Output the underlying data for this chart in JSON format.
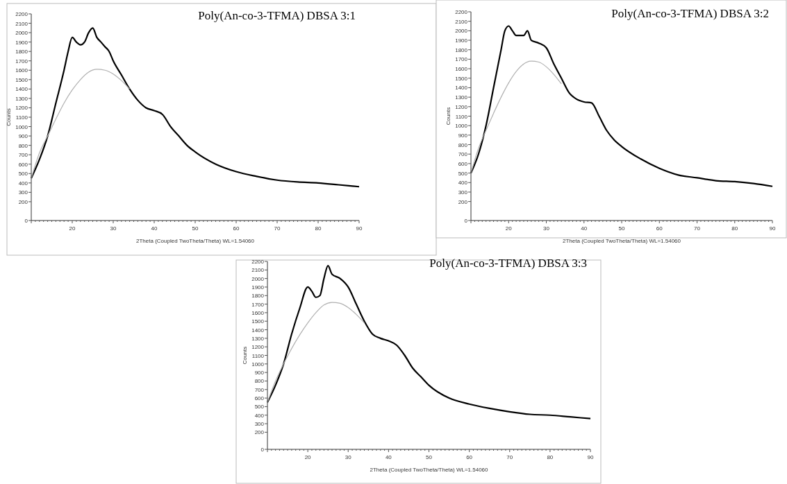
{
  "chart_data": [
    {
      "type": "line",
      "title": "Poly(An-co-3-TFMA) DBSA 3:1",
      "xlabel": "2Theta (Coupled TwoTheta/Theta) WL=1.54060",
      "ylabel": "Counts",
      "xlim": [
        10,
        90
      ],
      "ylim": [
        0,
        2200
      ],
      "xticks": [
        20,
        30,
        40,
        50,
        60,
        70,
        80,
        90
      ],
      "yticks": [
        0,
        200,
        300,
        400,
        500,
        600,
        700,
        800,
        900,
        1000,
        1100,
        1200,
        1300,
        1400,
        1500,
        1600,
        1700,
        1800,
        1900,
        2000,
        2100,
        2200
      ],
      "grid": false,
      "marker": "none",
      "series": [
        {
          "color": "#000000",
          "x": [
            10,
            12,
            14,
            16,
            18,
            19,
            20,
            21,
            22,
            23,
            24,
            25,
            26,
            27,
            28,
            29,
            30,
            32,
            34,
            36,
            38,
            40,
            42,
            44,
            46,
            48,
            50,
            55,
            60,
            65,
            70,
            75,
            80,
            85,
            90
          ],
          "values": [
            450,
            650,
            900,
            1250,
            1600,
            1800,
            1950,
            1900,
            1870,
            1900,
            2000,
            2050,
            1950,
            1900,
            1850,
            1800,
            1700,
            1550,
            1400,
            1280,
            1200,
            1170,
            1130,
            1000,
            900,
            800,
            730,
            600,
            520,
            470,
            430,
            410,
            400,
            380,
            360
          ]
        },
        {
          "color": "#b0b0b0",
          "x": [
            10,
            12,
            14,
            16,
            18,
            20,
            22,
            24,
            26,
            28,
            30,
            32,
            34
          ],
          "values": [
            450,
            720,
            900,
            1080,
            1250,
            1390,
            1500,
            1580,
            1610,
            1600,
            1560,
            1490,
            1400
          ]
        }
      ]
    },
    {
      "type": "line",
      "title": "Poly(An-co-3-TFMA) DBSA 3:2",
      "xlabel": "2Theta (Coupled TwoTheta/Theta) WL=1.54060",
      "ylabel": "Counts",
      "xlim": [
        10,
        90
      ],
      "ylim": [
        0,
        2200
      ],
      "xticks": [
        20,
        30,
        40,
        50,
        60,
        70,
        80,
        90
      ],
      "yticks": [
        0,
        200,
        300,
        400,
        500,
        600,
        700,
        800,
        900,
        1000,
        1100,
        1200,
        1300,
        1400,
        1500,
        1600,
        1700,
        1800,
        1900,
        2000,
        2100,
        2200
      ],
      "grid": false,
      "marker": "none",
      "series": [
        {
          "color": "#000000",
          "x": [
            10,
            12,
            14,
            16,
            18,
            19,
            20,
            21,
            22,
            24,
            25,
            26,
            28,
            30,
            32,
            34,
            36,
            38,
            40,
            42,
            44,
            46,
            48,
            50,
            55,
            60,
            65,
            70,
            75,
            80,
            85,
            90
          ],
          "values": [
            500,
            700,
            1000,
            1400,
            1800,
            2000,
            2050,
            2000,
            1950,
            1950,
            2000,
            1900,
            1870,
            1820,
            1650,
            1500,
            1350,
            1280,
            1250,
            1240,
            1100,
            950,
            850,
            780,
            650,
            550,
            480,
            450,
            420,
            410,
            390,
            360
          ]
        },
        {
          "color": "#b0b0b0",
          "x": [
            10,
            12,
            14,
            16,
            18,
            20,
            22,
            24,
            26,
            28,
            30,
            32,
            34
          ],
          "values": [
            500,
            760,
            950,
            1130,
            1300,
            1450,
            1570,
            1650,
            1680,
            1670,
            1620,
            1540,
            1440
          ]
        }
      ]
    },
    {
      "type": "line",
      "title": "Poly(An-co-3-TFMA) DBSA 3:3",
      "xlabel": "2Theta (Coupled TwoTheta/Theta) WL=1.54060",
      "ylabel": "Counts",
      "xlim": [
        10,
        90
      ],
      "ylim": [
        0,
        2200
      ],
      "xticks": [
        20,
        30,
        40,
        50,
        60,
        70,
        80,
        90
      ],
      "yticks": [
        0,
        200,
        300,
        400,
        500,
        600,
        700,
        800,
        900,
        1000,
        1100,
        1200,
        1300,
        1400,
        1500,
        1600,
        1700,
        1800,
        1900,
        2000,
        2100,
        2200
      ],
      "grid": false,
      "marker": "none",
      "series": [
        {
          "color": "#000000",
          "x": [
            10,
            12,
            14,
            16,
            18,
            20,
            21,
            22,
            23,
            24,
            25,
            26,
            28,
            30,
            32,
            34,
            36,
            38,
            40,
            42,
            44,
            46,
            48,
            50,
            55,
            60,
            65,
            70,
            75,
            80,
            85,
            90
          ],
          "values": [
            550,
            750,
            1000,
            1350,
            1650,
            1900,
            1850,
            1780,
            1800,
            2000,
            2150,
            2050,
            2000,
            1900,
            1700,
            1500,
            1350,
            1300,
            1270,
            1220,
            1100,
            950,
            850,
            750,
            600,
            530,
            480,
            440,
            410,
            400,
            380,
            360
          ]
        },
        {
          "color": "#b0b0b0",
          "x": [
            10,
            12,
            14,
            16,
            18,
            20,
            22,
            24,
            26,
            28,
            30,
            32,
            34
          ],
          "values": [
            550,
            800,
            1000,
            1180,
            1340,
            1480,
            1600,
            1690,
            1720,
            1710,
            1660,
            1580,
            1480
          ]
        }
      ]
    }
  ]
}
